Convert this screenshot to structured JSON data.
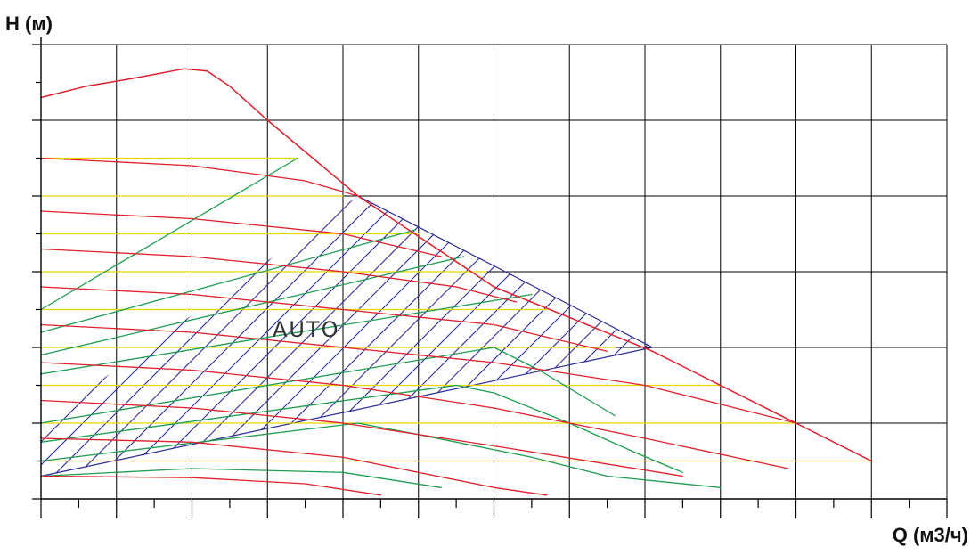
{
  "chart_data": {
    "type": "line",
    "xlabel": "Q (м3/ч)",
    "ylabel": "H (м)",
    "annotation": "AUTO",
    "xlim": [
      0,
      12
    ],
    "ylim": [
      0,
      6
    ],
    "grid": true,
    "tick_labels_printed": false,
    "colors": {
      "max_curve": "#e0202a",
      "speed_curves": "#e0202a",
      "constant_pressure": "#e8d800",
      "proportional_pressure": "#1e9e4e",
      "auto_hatch": "#2a2a9a",
      "grid": "#000000"
    },
    "series": [
      {
        "style": "max_curve",
        "x": [
          0,
          0.6,
          1.2,
          1.9,
          2.2,
          2.5,
          3.0,
          4.2,
          6.0,
          8.1,
          10.0,
          11.0
        ],
        "y": [
          5.3,
          5.45,
          5.55,
          5.68,
          5.65,
          5.45,
          5.0,
          4.0,
          2.8,
          1.95,
          1.0,
          0.5
        ]
      },
      {
        "style": "speed_curves",
        "x": [
          0,
          2.0,
          3.5,
          4.2
        ],
        "y": [
          4.5,
          4.4,
          4.2,
          4.0
        ]
      },
      {
        "style": "speed_curves",
        "x": [
          0,
          2.0,
          4.0,
          5.3
        ],
        "y": [
          3.8,
          3.7,
          3.5,
          3.2
        ]
      },
      {
        "style": "speed_curves",
        "x": [
          0,
          2.0,
          4.0,
          5.5,
          6.3
        ],
        "y": [
          3.3,
          3.2,
          3.0,
          2.8,
          2.6
        ]
      },
      {
        "style": "speed_curves",
        "x": [
          0,
          2.0,
          4.0,
          6.0,
          7.5
        ],
        "y": [
          2.8,
          2.7,
          2.5,
          2.3,
          1.95
        ]
      },
      {
        "style": "speed_curves",
        "x": [
          0,
          2.0,
          4.0,
          6.0,
          8.0,
          10.0
        ],
        "y": [
          2.3,
          2.2,
          2.0,
          1.8,
          1.5,
          1.0
        ]
      },
      {
        "style": "speed_curves",
        "x": [
          0,
          2.0,
          4.0,
          6.0,
          8.0,
          9.9
        ],
        "y": [
          1.8,
          1.7,
          1.5,
          1.2,
          0.8,
          0.4
        ]
      },
      {
        "style": "speed_curves",
        "x": [
          0,
          2.0,
          4.0,
          6.0,
          8.5
        ],
        "y": [
          1.3,
          1.2,
          1.0,
          0.7,
          0.3
        ]
      },
      {
        "style": "speed_curves",
        "x": [
          0,
          2.0,
          4.0,
          6.0,
          6.7
        ],
        "y": [
          0.8,
          0.75,
          0.55,
          0.15,
          0.05
        ]
      },
      {
        "style": "speed_curves",
        "x": [
          0,
          2.0,
          3.5,
          4.5
        ],
        "y": [
          0.3,
          0.28,
          0.2,
          0.05
        ]
      },
      {
        "style": "constant_pressure",
        "x": [
          0,
          3.4
        ],
        "y": [
          4.5,
          4.5
        ]
      },
      {
        "style": "constant_pressure",
        "x": [
          0,
          4.0
        ],
        "y": [
          4.0,
          4.0
        ]
      },
      {
        "style": "constant_pressure",
        "x": [
          0,
          5.0
        ],
        "y": [
          3.5,
          3.5
        ]
      },
      {
        "style": "constant_pressure",
        "x": [
          0,
          5.9
        ],
        "y": [
          3.0,
          3.0
        ]
      },
      {
        "style": "constant_pressure",
        "x": [
          0,
          6.7
        ],
        "y": [
          2.5,
          2.5
        ]
      },
      {
        "style": "constant_pressure",
        "x": [
          0,
          7.6
        ],
        "y": [
          2.0,
          2.0
        ]
      },
      {
        "style": "constant_pressure",
        "x": [
          0,
          9.0
        ],
        "y": [
          1.5,
          1.5
        ]
      },
      {
        "style": "constant_pressure",
        "x": [
          0,
          10.0
        ],
        "y": [
          1.0,
          1.0
        ]
      },
      {
        "style": "constant_pressure",
        "x": [
          0,
          11.0
        ],
        "y": [
          0.5,
          0.5
        ]
      },
      {
        "style": "proportional_pressure",
        "x": [
          0,
          3.4
        ],
        "y": [
          2.5,
          4.5
        ]
      },
      {
        "style": "proportional_pressure",
        "x": [
          0,
          4.95
        ],
        "y": [
          2.2,
          3.55
        ]
      },
      {
        "style": "proportional_pressure",
        "x": [
          0,
          5.6
        ],
        "y": [
          1.9,
          3.2
        ]
      },
      {
        "style": "proportional_pressure",
        "x": [
          0,
          6.5
        ],
        "y": [
          1.65,
          2.7
        ]
      },
      {
        "style": "proportional_pressure",
        "x": [
          0,
          6.0,
          6.6,
          7.1,
          7.6
        ],
        "y": [
          1.0,
          2.0,
          1.7,
          1.4,
          1.1
        ]
      },
      {
        "style": "proportional_pressure",
        "x": [
          0,
          5.5,
          6.0,
          7.0,
          7.9,
          8.5
        ],
        "y": [
          0.75,
          1.5,
          1.4,
          1.0,
          0.6,
          0.35
        ]
      },
      {
        "style": "proportional_pressure",
        "x": [
          0,
          4.2,
          5.0,
          6.5,
          7.5,
          9.0
        ],
        "y": [
          0.5,
          1.0,
          0.85,
          0.55,
          0.3,
          0.15
        ]
      },
      {
        "style": "proportional_pressure",
        "x": [
          0,
          2.0,
          4.0,
          5.3
        ],
        "y": [
          0.3,
          0.4,
          0.35,
          0.15
        ]
      }
    ],
    "auto_region": {
      "x": [
        0,
        4.2,
        8.1,
        0
      ],
      "y": [
        1.0,
        4.0,
        2.0,
        0.3
      ]
    }
  }
}
